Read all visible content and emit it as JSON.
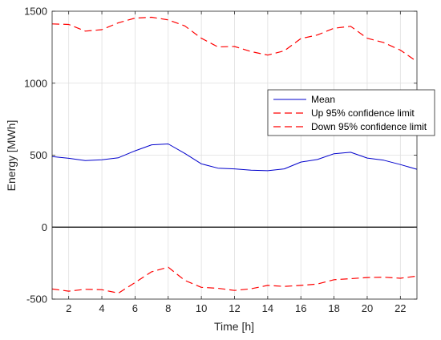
{
  "chart_data": {
    "type": "line",
    "title": "",
    "xlabel": "Time [h]",
    "ylabel": "Energy [MWh]",
    "xlim": [
      1,
      23
    ],
    "ylim": [
      -500,
      1500
    ],
    "xticks": [
      2,
      4,
      6,
      8,
      10,
      12,
      14,
      16,
      18,
      20,
      22
    ],
    "yticks": [
      -500,
      0,
      500,
      1000,
      1500
    ],
    "grid": true,
    "zero_line": true,
    "legend_position": "upper-right",
    "x": [
      1,
      2,
      3,
      4,
      5,
      6,
      7,
      8,
      9,
      10,
      11,
      12,
      13,
      14,
      15,
      16,
      17,
      18,
      19,
      20,
      21,
      22,
      23
    ],
    "series": [
      {
        "name": "Mean",
        "color": "#0000cc",
        "style": "solid",
        "values": [
          490,
          478,
          462,
          468,
          482,
          530,
          572,
          578,
          512,
          440,
          410,
          405,
          395,
          392,
          405,
          452,
          470,
          510,
          520,
          480,
          465,
          435,
          402
        ]
      },
      {
        "name": "Up 95% confidence limit",
        "color": "#ff0000",
        "style": "dashed",
        "values": [
          1412,
          1408,
          1362,
          1372,
          1420,
          1452,
          1458,
          1440,
          1398,
          1312,
          1252,
          1255,
          1220,
          1195,
          1225,
          1310,
          1335,
          1382,
          1395,
          1312,
          1282,
          1230,
          1150
        ]
      },
      {
        "name": "Down 95% confidence limit",
        "color": "#ff0000",
        "style": "dashed",
        "values": [
          -430,
          -445,
          -432,
          -435,
          -458,
          -385,
          -310,
          -278,
          -370,
          -418,
          -425,
          -440,
          -428,
          -405,
          -412,
          -405,
          -395,
          -365,
          -358,
          -350,
          -348,
          -355,
          -340
        ]
      }
    ]
  }
}
